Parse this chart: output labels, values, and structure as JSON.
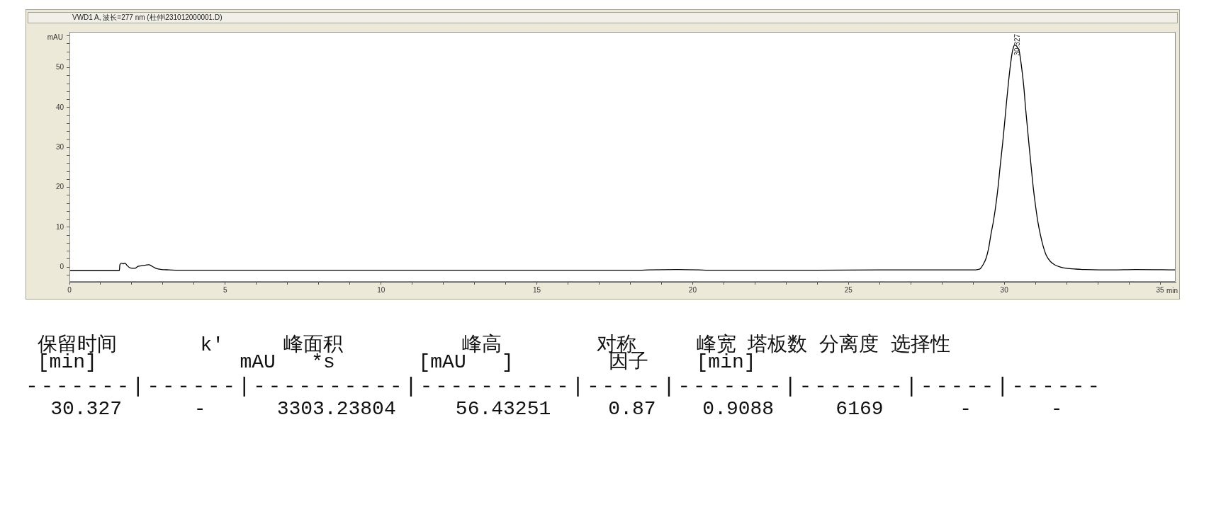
{
  "chart_data": {
    "type": "line",
    "title": "VWD1 A, 波长=277 nm (杜仲\\231012000001.D)",
    "xlabel": "min",
    "ylabel": "mAU",
    "x": [
      0,
      1.6,
      1.62,
      1.67,
      1.72,
      1.78,
      1.85,
      1.95,
      2.1,
      2.2,
      2.3,
      2.45,
      2.55,
      2.65,
      2.8,
      2.95,
      3.2,
      3.5,
      5,
      8,
      12,
      16,
      18.3,
      18.6,
      19.5,
      20.2,
      20.5,
      24,
      26,
      28.7,
      29.0,
      29.15,
      29.23,
      29.32,
      29.42,
      29.5,
      29.57,
      29.65,
      29.72,
      29.8,
      29.87,
      29.95,
      30.02,
      30.08,
      30.14,
      30.2,
      30.25,
      30.29,
      30.33,
      30.38,
      30.43,
      30.48,
      30.55,
      30.63,
      30.68,
      30.74,
      30.8,
      30.86,
      30.93,
      31.01,
      31.08,
      31.16,
      31.25,
      31.35,
      31.48,
      31.61,
      31.8,
      31.99,
      32.3,
      32.6,
      33.5,
      34.2,
      35.5
    ],
    "values": [
      -0.9,
      -0.9,
      0.6,
      1.0,
      0.8,
      1.0,
      0.4,
      -0.2,
      -0.3,
      0.2,
      0.3,
      0.5,
      0.6,
      0.2,
      -0.4,
      -0.6,
      -0.7,
      -0.8,
      -0.8,
      -0.8,
      -0.8,
      -0.8,
      -0.8,
      -0.7,
      -0.6,
      -0.7,
      -0.8,
      -0.8,
      -0.7,
      -0.7,
      -0.7,
      -0.6,
      -0.4,
      0.6,
      2.3,
      4.8,
      8.1,
      11.4,
      15.0,
      20.0,
      25.4,
      31.2,
      36.9,
      42.0,
      46.7,
      50.8,
      53.6,
      55.0,
      55.7,
      55.6,
      55.0,
      54.2,
      50.5,
      45.0,
      40.2,
      35.2,
      30.2,
      25.4,
      20.0,
      15.0,
      11.3,
      8.1,
      5.2,
      2.9,
      1.4,
      0.6,
      0.0,
      -0.3,
      -0.5,
      -0.6,
      -0.7,
      -0.6,
      -0.7
    ],
    "color": "#000000",
    "xlim": [
      0,
      35.5
    ],
    "ylim": [
      -3.7,
      59
    ],
    "xticks": [
      0,
      {
        "value": 1,
        "label": null
      },
      {
        "value": 2,
        "label": null
      },
      {
        "value": 3,
        "label": null
      },
      {
        "value": 4,
        "label": null
      },
      5,
      {
        "value": 6,
        "label": null
      },
      {
        "value": 7,
        "label": null
      },
      {
        "value": 8,
        "label": null
      },
      {
        "value": 9,
        "label": null
      },
      10,
      {
        "value": 11,
        "label": null
      },
      {
        "value": 12,
        "label": null
      },
      {
        "value": 13,
        "label": null
      },
      {
        "value": 14,
        "label": null
      },
      15,
      {
        "value": 16,
        "label": null
      },
      {
        "value": 17,
        "label": null
      },
      {
        "value": 18,
        "label": null
      },
      {
        "value": 19,
        "label": null
      },
      20,
      {
        "value": 21,
        "label": null
      },
      {
        "value": 22,
        "label": null
      },
      {
        "value": 23,
        "label": null
      },
      {
        "value": 24,
        "label": null
      },
      25,
      {
        "value": 26,
        "label": null
      },
      {
        "value": 27,
        "label": null
      },
      {
        "value": 28,
        "label": null
      },
      {
        "value": 29,
        "label": null
      },
      30,
      {
        "value": 31,
        "label": null
      },
      {
        "value": 32,
        "label": null
      },
      {
        "value": 33,
        "label": null
      },
      {
        "value": 34,
        "label": null
      },
      35
    ],
    "yticks": [
      {
        "value": -2,
        "label": null
      },
      0,
      {
        "value": 2,
        "label": null
      },
      {
        "value": 4,
        "label": null
      },
      {
        "value": 6,
        "label": null
      },
      {
        "value": 8,
        "label": null
      },
      10,
      {
        "value": 12,
        "label": null
      },
      {
        "value": 14,
        "label": null
      },
      {
        "value": 16,
        "label": null
      },
      {
        "value": 18,
        "label": null
      },
      20,
      {
        "value": 22,
        "label": null
      },
      {
        "value": 24,
        "label": null
      },
      {
        "value": 26,
        "label": null
      },
      {
        "value": 28,
        "label": null
      },
      30,
      {
        "value": 32,
        "label": null
      },
      {
        "value": 34,
        "label": null
      },
      {
        "value": 36,
        "label": null
      },
      {
        "value": 38,
        "label": null
      },
      40,
      {
        "value": 42,
        "label": null
      },
      {
        "value": 44,
        "label": null
      },
      {
        "value": 46,
        "label": null
      },
      {
        "value": 48,
        "label": null
      },
      50,
      {
        "value": 52,
        "label": null
      },
      {
        "value": 54,
        "label": null
      },
      {
        "value": 56,
        "label": null
      },
      {
        "value": 58,
        "label": null
      }
    ],
    "grid": false,
    "legend": false,
    "marker": "none",
    "line_style": "solid",
    "annotations": [
      {
        "text": "30.327",
        "x": 30.327,
        "y": 55.7
      },
      " 保留时间       k'     峰面积          峰高        对称     峰宽 塔板数 分离度 选择性",
      " [min]            mAU   *s       [mAU   ]        因子    [min]",
      "-------|------|----------|----------|-----|-------|-------|-----|------",
      "30.327",
      "-",
      "3303.23804",
      "56.43251",
      "0.87",
      "0.9088",
      "6169",
      "-",
      "-"
    ]
  }
}
